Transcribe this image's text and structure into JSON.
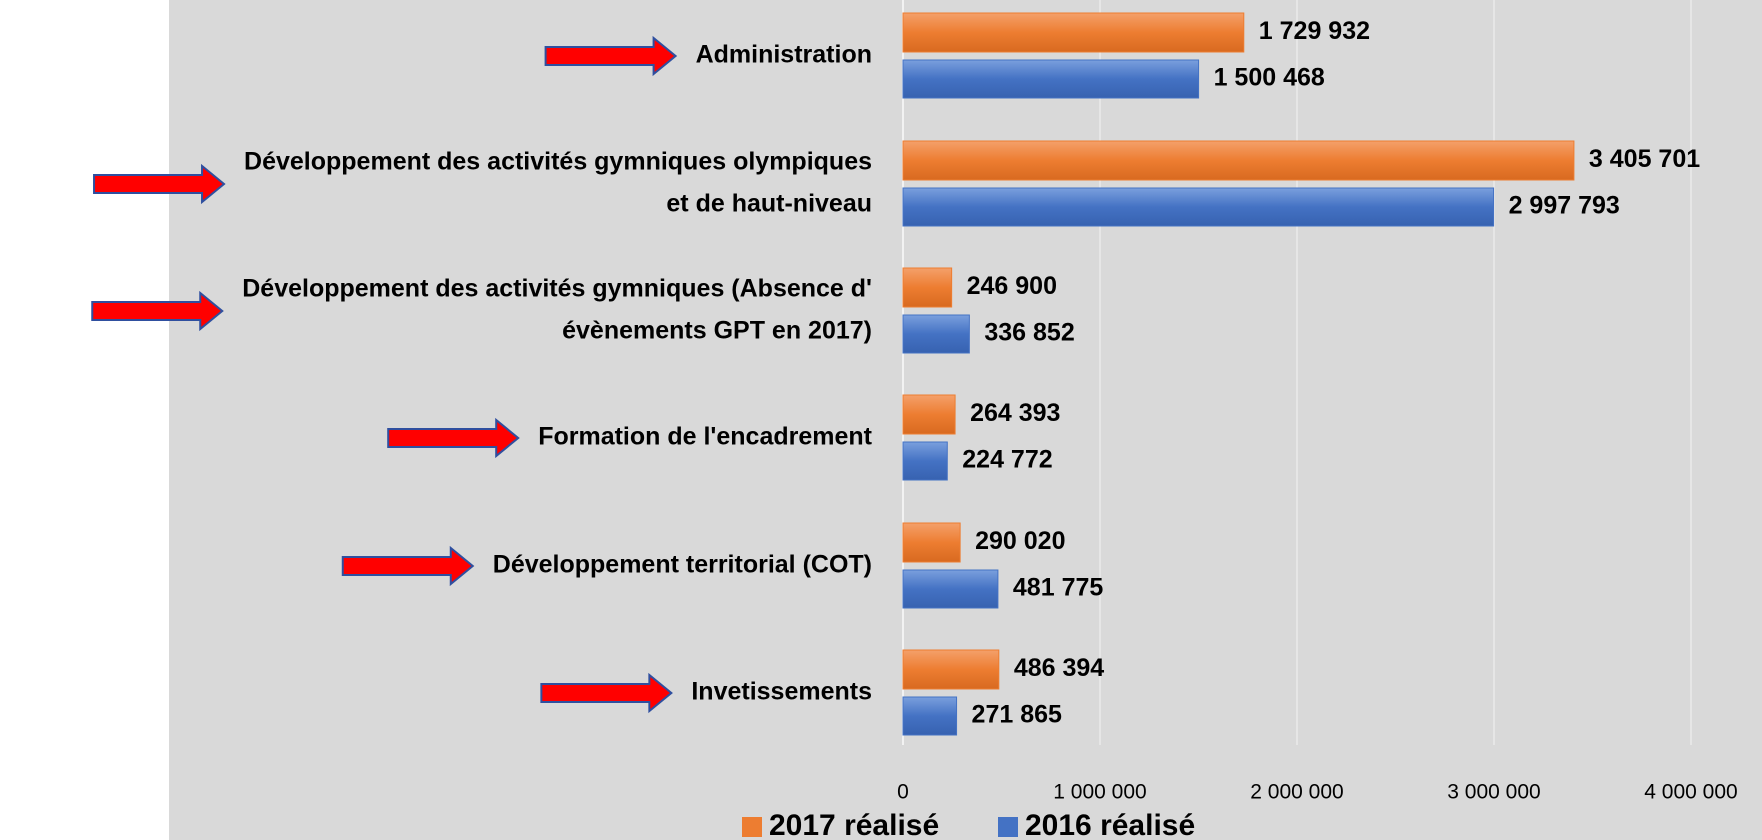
{
  "chart_data": {
    "type": "hbar",
    "categories": [
      [
        "Administration"
      ],
      [
        "Développement des activités gymniques olympiques",
        "et de  haut-niveau"
      ],
      [
        "Développement des activités gymniques (Absence d'",
        "évènements GPT en 2017)"
      ],
      [
        "Formation de l'encadrement"
      ],
      [
        "Développement territorial  (COT)"
      ],
      [
        "Invetissements"
      ]
    ],
    "series": [
      {
        "name": "2017 réalisé",
        "color": "#ED7D31",
        "values": [
          1729932,
          3405701,
          246900,
          264393,
          290020,
          486394
        ],
        "value_labels": [
          "1 729 932",
          "3 405 701",
          "246 900",
          "264 393",
          "290 020",
          "486 394"
        ]
      },
      {
        "name": "2016 réalisé",
        "color": "#4472C4",
        "values": [
          1500468,
          2997793,
          336852,
          224772,
          481775,
          271865
        ],
        "value_labels": [
          "1 500 468",
          "2 997 793",
          "336 852",
          "224 772",
          "481 775",
          "271 865"
        ]
      }
    ],
    "xlim": [
      0,
      4000000
    ],
    "xticks": [
      0,
      {
        "value": 1000000,
        "label": "1 000 000"
      },
      {
        "value": 2000000,
        "label": "2 000 000"
      },
      {
        "value": 3000000,
        "label": "3 000 000"
      },
      {
        "value": 4000000,
        "label": "4 000 000"
      }
    ],
    "grid": true,
    "legend": "bottom"
  }
}
